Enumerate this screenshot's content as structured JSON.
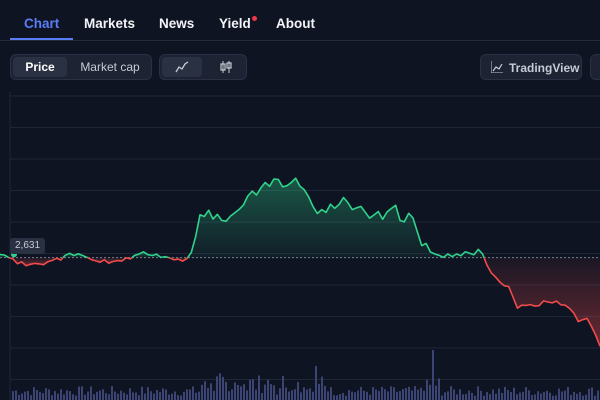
{
  "nav": {
    "tabs": [
      {
        "label": "Chart",
        "active": true
      },
      {
        "label": "Markets"
      },
      {
        "label": "News"
      },
      {
        "label": "Yield",
        "has_notification": true
      },
      {
        "label": "About"
      }
    ]
  },
  "controls": {
    "metric_toggle": {
      "options": [
        "Price",
        "Market cap"
      ],
      "selected": "Price"
    },
    "chart_style_toggle": {
      "options": [
        "line-chart-icon",
        "candlestick-icon"
      ],
      "selected": "line-chart-icon"
    },
    "tradingview_label": "TradingView"
  },
  "colors": {
    "up": "#2fd38b",
    "down": "#f04b4b",
    "accent": "#5b7cf7",
    "volume": "#3b4472"
  },
  "chart_data": {
    "type": "line",
    "baseline_value": 2631,
    "baseline_label": "2,631",
    "y_range": [
      2100,
      3400
    ],
    "values": [
      2646,
      2643,
      2631,
      2625,
      2603,
      2611,
      2593,
      2600,
      2604,
      2602,
      2598,
      2612,
      2618,
      2628,
      2620,
      2642,
      2651,
      2641,
      2649,
      2641,
      2632,
      2622,
      2616,
      2610,
      2621,
      2605,
      2613,
      2617,
      2615,
      2630,
      2625,
      2642,
      2648,
      2658,
      2645,
      2641,
      2647,
      2632,
      2636,
      2630,
      2621,
      2624,
      2615,
      2627,
      2655,
      2730,
      2830,
      2822,
      2851,
      2810,
      2832,
      2804,
      2800,
      2824,
      2839,
      2855,
      2876,
      2917,
      2940,
      2922,
      2955,
      2980,
      2962,
      2996,
      2994,
      2960,
      2965,
      2980,
      3000,
      2962,
      2946,
      2913,
      2868,
      2836,
      2854,
      2841,
      2879,
      2860,
      2878,
      2910,
      2887,
      2854,
      2862,
      2869,
      2842,
      2814,
      2829,
      2845,
      2809,
      2843,
      2859,
      2874,
      2804,
      2797,
      2837,
      2815,
      2750,
      2687,
      2697,
      2657,
      2648,
      2642,
      2632,
      2648,
      2636,
      2648,
      2640,
      2658,
      2651,
      2644,
      2669,
      2648,
      2596,
      2560,
      2540,
      2517,
      2500,
      2497,
      2448,
      2396,
      2410,
      2409,
      2413,
      2406,
      2408,
      2430,
      2425,
      2421,
      2429,
      2412,
      2410,
      2395,
      2373,
      2334,
      2343,
      2349,
      2313,
      2271,
      2220
    ]
  }
}
